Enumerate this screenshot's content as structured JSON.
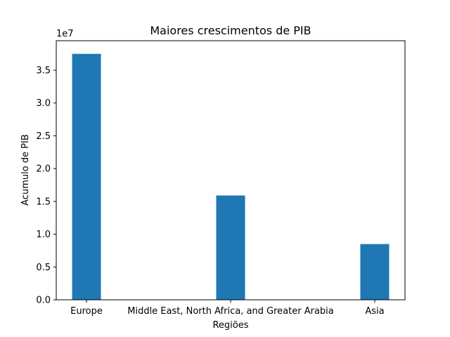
{
  "chart_data": {
    "type": "bar",
    "title": "Maiores crescimentos de PIB",
    "xlabel": "Regiões",
    "ylabel": "Acumulo de PIB",
    "offset_label": "1e7",
    "categories": [
      "Europe",
      "Middle East, North Africa, and Greater Arabia",
      "Asia"
    ],
    "values": [
      37500000,
      15900000,
      8500000
    ],
    "ylim": [
      0,
      39500000
    ],
    "yticks": [
      0,
      5000000,
      10000000,
      15000000,
      20000000,
      25000000,
      30000000,
      35000000
    ],
    "ytick_labels": [
      "0.0",
      "0.5",
      "1.0",
      "1.5",
      "2.0",
      "2.5",
      "3.0",
      "3.5"
    ],
    "bar_color": "#1f77b4",
    "grid": false
  }
}
